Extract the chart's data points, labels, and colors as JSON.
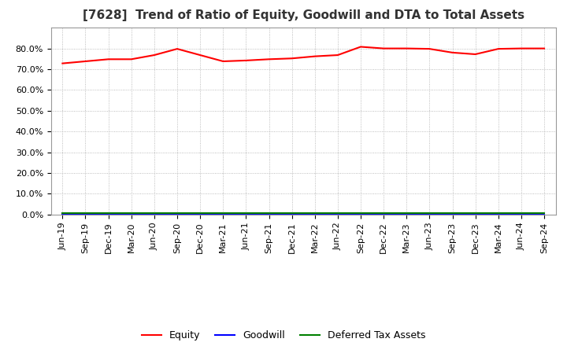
{
  "title": "[7628]  Trend of Ratio of Equity, Goodwill and DTA to Total Assets",
  "x_labels": [
    "Jun-19",
    "Sep-19",
    "Dec-19",
    "Mar-20",
    "Jun-20",
    "Sep-20",
    "Dec-20",
    "Mar-21",
    "Jun-21",
    "Sep-21",
    "Dec-21",
    "Mar-22",
    "Jun-22",
    "Sep-22",
    "Dec-22",
    "Mar-23",
    "Jun-23",
    "Sep-23",
    "Dec-23",
    "Mar-24",
    "Jun-24",
    "Sep-24"
  ],
  "equity": [
    0.728,
    0.738,
    0.748,
    0.748,
    0.768,
    0.798,
    0.768,
    0.738,
    0.742,
    0.748,
    0.752,
    0.762,
    0.768,
    0.808,
    0.8,
    0.8,
    0.798,
    0.78,
    0.772,
    0.798,
    0.8,
    0.8
  ],
  "goodwill": [
    0.0,
    0.0,
    0.0,
    0.0,
    0.0,
    0.0,
    0.0,
    0.0,
    0.0,
    0.0,
    0.0,
    0.0,
    0.0,
    0.0,
    0.0,
    0.0,
    0.0,
    0.0,
    0.0,
    0.0,
    0.0,
    0.0
  ],
  "dta": [
    0.008,
    0.008,
    0.008,
    0.008,
    0.008,
    0.008,
    0.008,
    0.008,
    0.008,
    0.008,
    0.008,
    0.008,
    0.008,
    0.008,
    0.008,
    0.008,
    0.008,
    0.008,
    0.008,
    0.008,
    0.008,
    0.008
  ],
  "equity_color": "#ff0000",
  "goodwill_color": "#0000ff",
  "dta_color": "#008000",
  "background_color": "#ffffff",
  "grid_color": "#aaaaaa",
  "ylim": [
    0.0,
    0.9
  ],
  "yticks": [
    0.0,
    0.1,
    0.2,
    0.3,
    0.4,
    0.5,
    0.6,
    0.7,
    0.8
  ],
  "legend_labels": [
    "Equity",
    "Goodwill",
    "Deferred Tax Assets"
  ],
  "title_fontsize": 11,
  "axis_fontsize": 8,
  "legend_fontsize": 9
}
